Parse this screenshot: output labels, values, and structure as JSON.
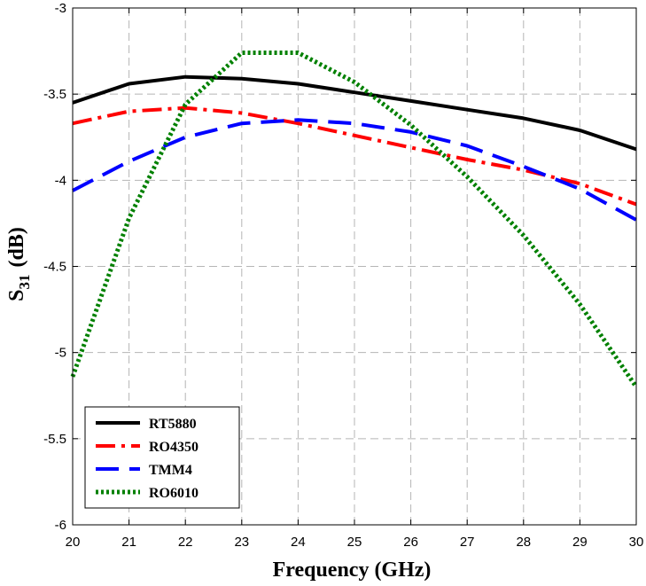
{
  "chart_data": {
    "type": "line",
    "title": "",
    "xlabel": "Frequency (GHz)",
    "ylabel_main": "S",
    "ylabel_sub": "31",
    "ylabel_unit": "(dB)",
    "xlim": [
      20,
      30
    ],
    "ylim": [
      -6,
      -3
    ],
    "x_ticks": [
      20,
      21,
      22,
      23,
      24,
      25,
      26,
      27,
      28,
      29,
      30
    ],
    "x_tick_labels": [
      "20",
      "21",
      "22",
      "23",
      "24",
      "25",
      "26",
      "27",
      "28",
      "29",
      "30"
    ],
    "y_ticks": [
      -6,
      -5.5,
      -5,
      -4.5,
      -4,
      -3.5,
      -3
    ],
    "y_tick_labels": [
      "-6",
      "-5.5",
      "-5",
      "-4.5",
      "-4",
      "-3.5",
      "-3"
    ],
    "grid": true,
    "legend_position": "bottom-left",
    "x": [
      20,
      21,
      22,
      23,
      24,
      25,
      26,
      27,
      28,
      29,
      30
    ],
    "series": [
      {
        "name": "RT5880",
        "color": "#000000",
        "dash": "solid",
        "values": [
          -3.55,
          -3.44,
          -3.4,
          -3.41,
          -3.44,
          -3.49,
          -3.54,
          -3.59,
          -3.64,
          -3.71,
          -3.82
        ]
      },
      {
        "name": "RO4350",
        "color": "#ff0000",
        "dash": "dashdot",
        "values": [
          -3.67,
          -3.6,
          -3.58,
          -3.61,
          -3.67,
          -3.74,
          -3.81,
          -3.88,
          -3.94,
          -4.02,
          -4.14
        ]
      },
      {
        "name": "TMM4",
        "color": "#0000ff",
        "dash": "dash",
        "values": [
          -4.06,
          -3.89,
          -3.75,
          -3.67,
          -3.65,
          -3.67,
          -3.72,
          -3.8,
          -3.92,
          -4.05,
          -4.23
        ]
      },
      {
        "name": "RO6010",
        "color": "#008000",
        "dash": "dot",
        "values": [
          -5.14,
          -4.22,
          -3.56,
          -3.26,
          -3.26,
          -3.43,
          -3.68,
          -3.98,
          -4.32,
          -4.72,
          -5.2
        ]
      }
    ]
  }
}
